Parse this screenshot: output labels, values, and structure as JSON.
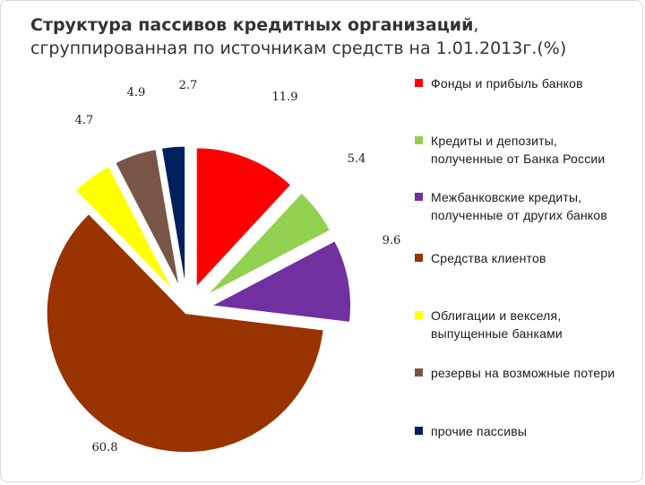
{
  "title": {
    "bold": "Структура пассивов кредитных организаций",
    "rest": ", сгруппированная по источникам средств на 1.01.2013г.(%)"
  },
  "chart_data": {
    "type": "pie",
    "slices": [
      {
        "label": "Фонды и прибыль банков",
        "value": 11.9,
        "value_label": "11.9",
        "color": "#ff0000"
      },
      {
        "label": "Кредиты и депозиты,\nполученные от Банка России",
        "value": 5.4,
        "value_label": "5.4",
        "color": "#92d050"
      },
      {
        "label": "Межбанковские кредиты,\nполученные от других банков",
        "value": 9.6,
        "value_label": "9.6",
        "color": "#7030a0"
      },
      {
        "label": "Средства клиентов",
        "value": 60.8,
        "value_label": "60.8",
        "color": "#993300"
      },
      {
        "label": "Облигации и векселя,\nвыпущенные банками",
        "value": 4.7,
        "value_label": "4.7",
        "color": "#ffff00"
      },
      {
        "label": "резервы на возможные потери",
        "value": 4.9,
        "value_label": "4.9",
        "color": "#795548"
      },
      {
        "label": "прочие пассивы",
        "value": 2.7,
        "value_label": "2.7",
        "color": "#002060"
      }
    ],
    "exploded": true,
    "legend_position": "right"
  }
}
